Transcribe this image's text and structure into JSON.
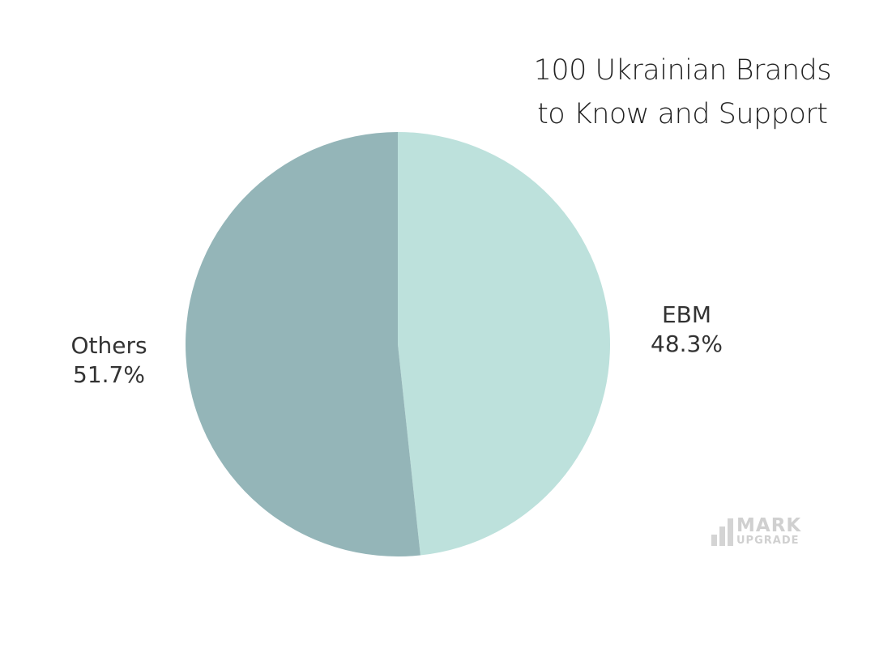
{
  "chart_data": {
    "type": "pie",
    "title": [
      "100 Ukrainian Brands",
      "to Know and Support"
    ],
    "slices": [
      {
        "label": "EBM",
        "value": 48.3,
        "value_label": "48.3%",
        "color": "#bde1dc"
      },
      {
        "label": "Others",
        "value": 51.7,
        "value_label": "51.7%",
        "color": "#94b5b8"
      }
    ],
    "start_angle": "top",
    "direction": "clockwise"
  },
  "watermark": {
    "line1": "MARK",
    "line2": "UPGRADE"
  }
}
